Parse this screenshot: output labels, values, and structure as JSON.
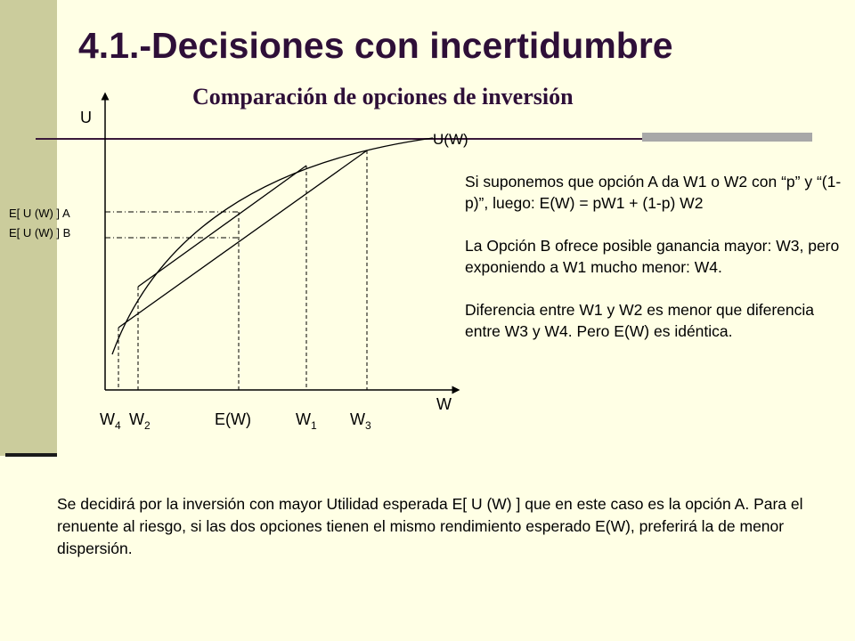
{
  "slide": {
    "title": "4.1.-Decisiones con incertidumbre",
    "subtitle": "Comparación de opciones de inversión"
  },
  "diagram": {
    "y_axis_label": "U",
    "x_axis_label": "W",
    "curve_label": "U(W)",
    "eu_a_label": "E[ U (W) ] A",
    "eu_b_label": "E[ U (W) ] B",
    "x_ticks": [
      {
        "base": "W",
        "sub": "4"
      },
      {
        "base": "W",
        "sub": "2"
      },
      {
        "base": "E(W)",
        "sub": ""
      },
      {
        "base": "W",
        "sub": "1"
      },
      {
        "base": "W",
        "sub": "3"
      }
    ]
  },
  "explanation": {
    "para1": "Si suponemos que opción A da W1 o W2 con “p” y “(1- p)”, luego: E(W) = pW1 + (1-p) W2",
    "para2": "La Opción B ofrece posible ganancia mayor: W3, pero exponiendo a W1 mucho menor: W4.",
    "para3": "Diferencia entre W1 y W2 es menor que diferencia entre W3 y W4. Pero E(W) es idéntica."
  },
  "conclusion": "Se decidirá por la inversión con mayor Utilidad esperada E[ U (W) ] que en este caso es la opción A. Para el renuente al riesgo, si las dos opciones tienen el mismo rendimiento esperado E(W), preferirá la de menor dispersión.",
  "colors": {
    "background": "#ffffe5",
    "sidebar": "#cbcc9c",
    "title": "#2e0f38",
    "accent_bar": "#a8a8a8"
  }
}
